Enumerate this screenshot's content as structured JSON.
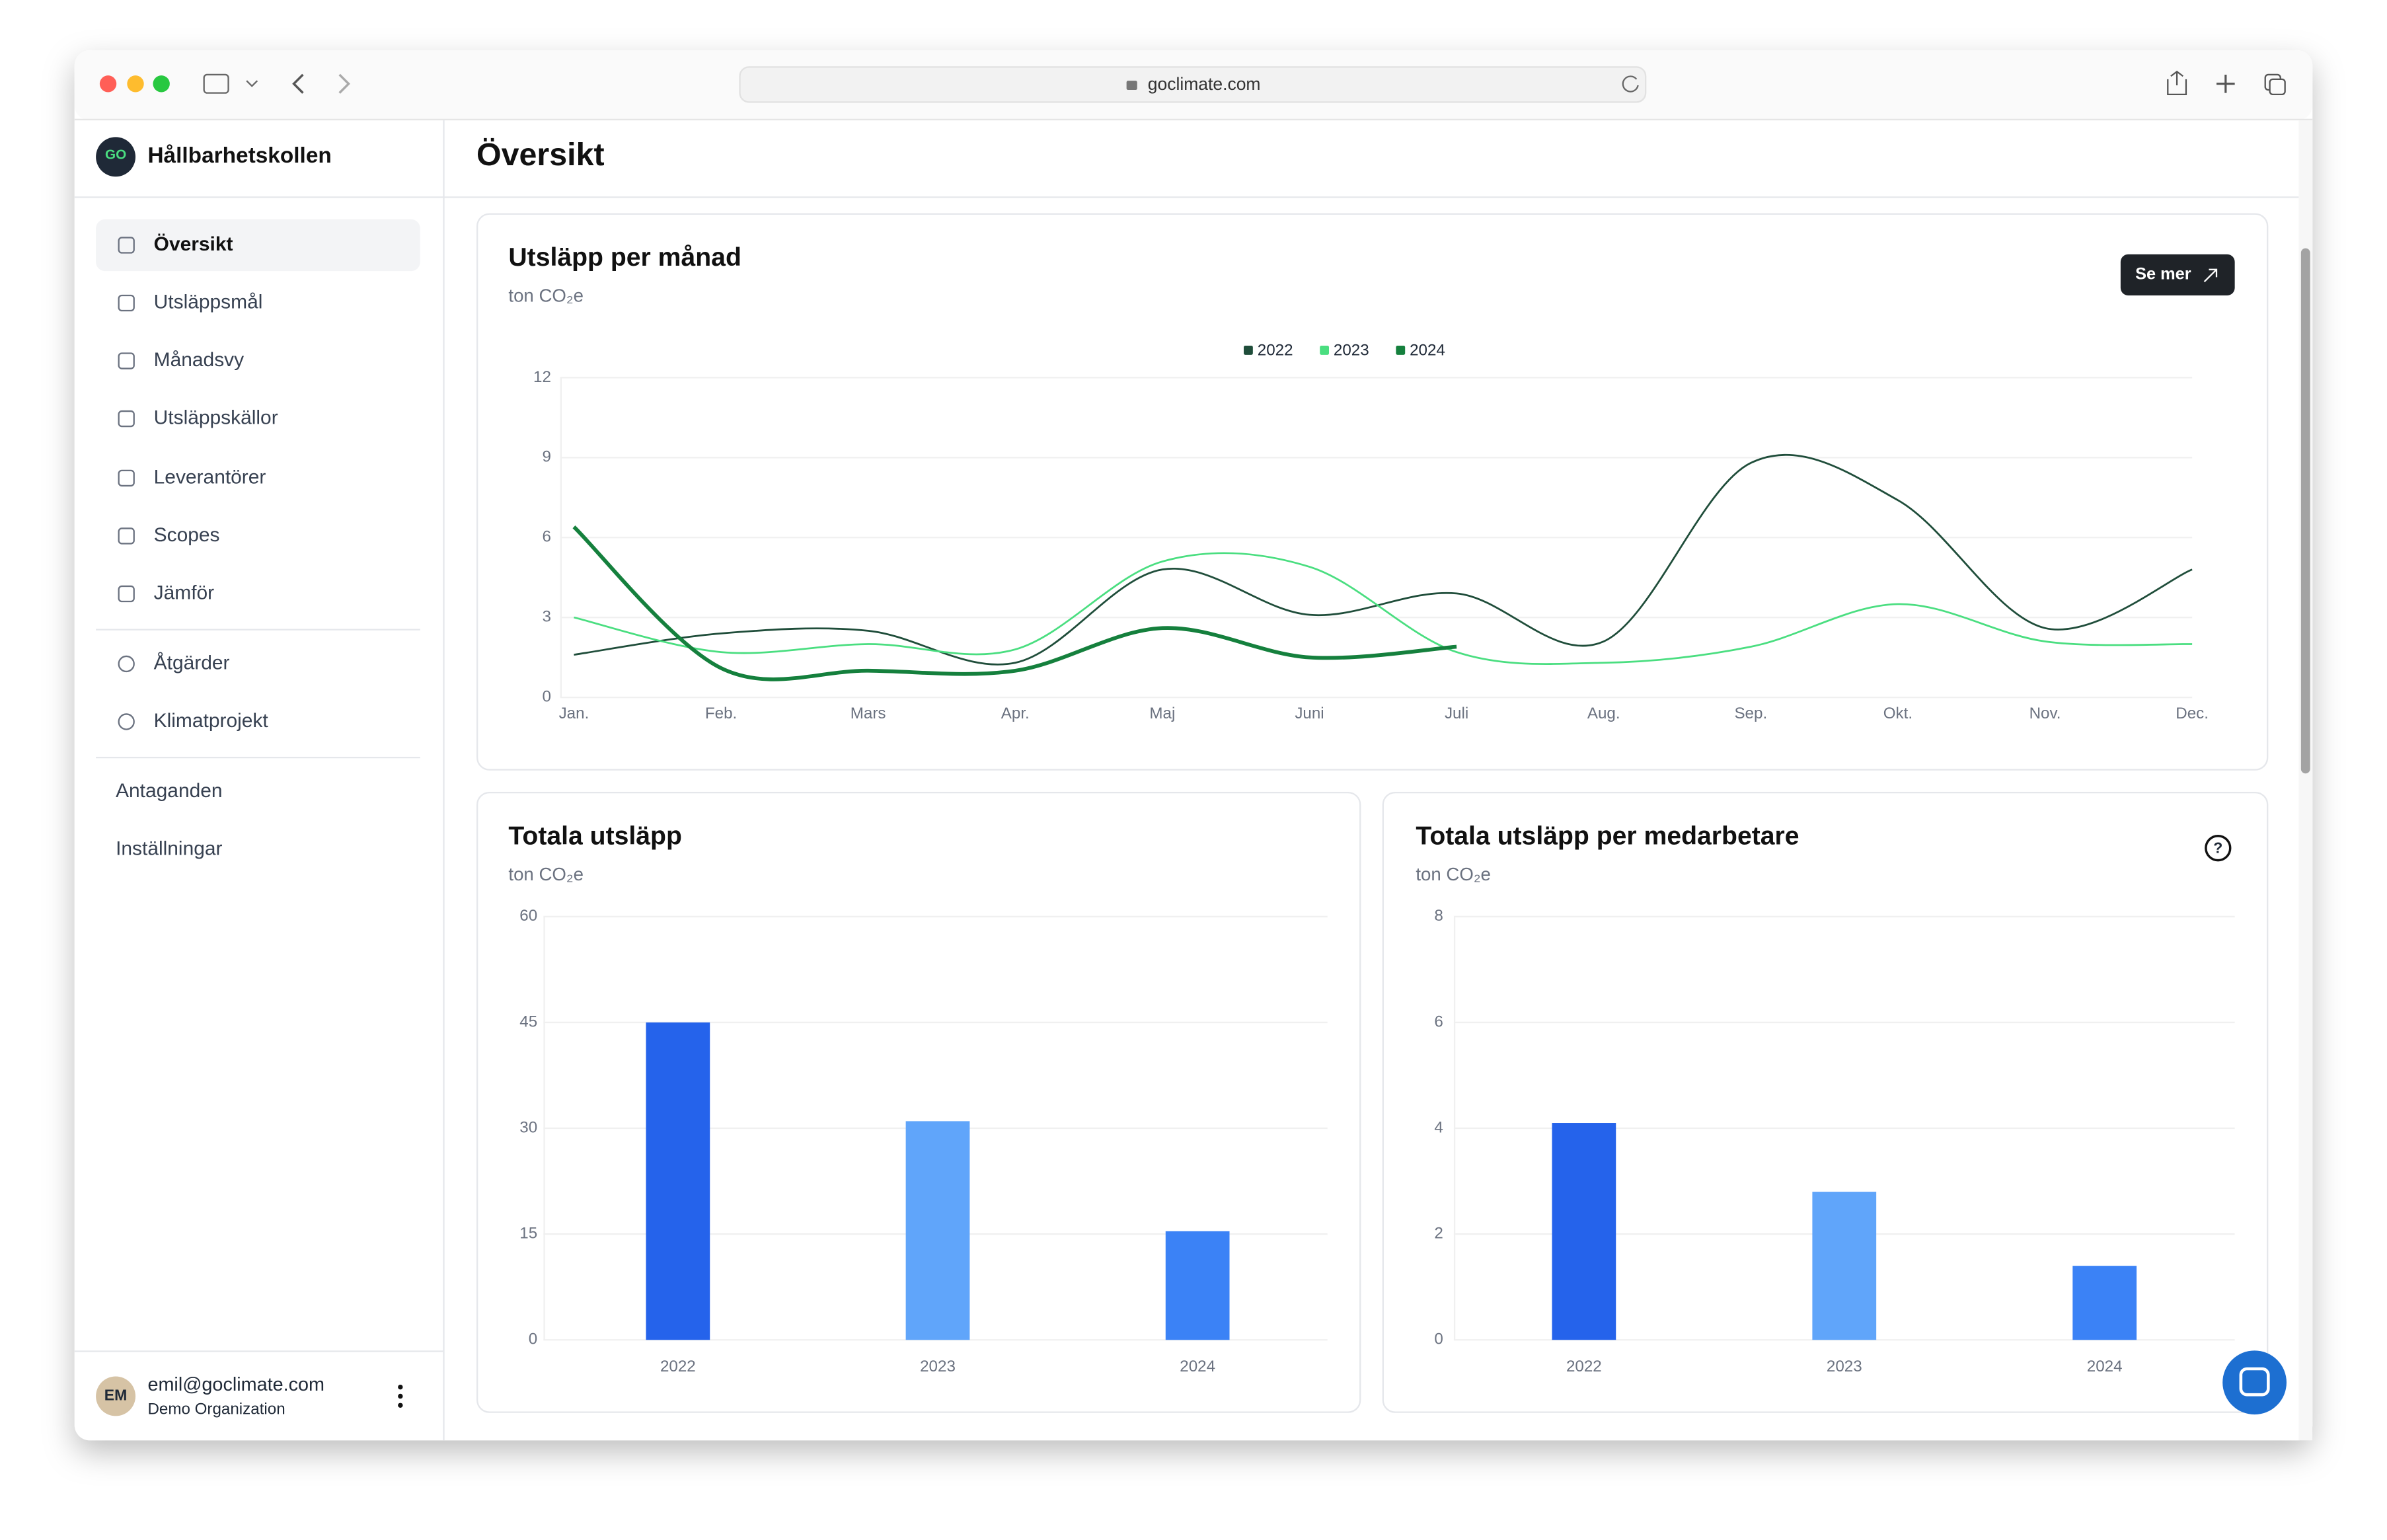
{
  "browser": {
    "url": "goclimate.com"
  },
  "sidebar": {
    "logo": "GO",
    "brand": "Hållbarhetskollen",
    "nav": [
      "Översikt",
      "Utsläppsmål",
      "Månadsvy",
      "Utsläppskällor",
      "Leverantörer",
      "Scopes",
      "Jämför"
    ],
    "actions": [
      "Åtgärder",
      "Klimatprojekt"
    ],
    "settings": [
      "Antaganden",
      "Inställningar"
    ],
    "user": {
      "initials": "EM",
      "email": "emil@goclimate.com",
      "organization": "Demo Organization"
    }
  },
  "page": {
    "title": "Översikt"
  },
  "chart_data": [
    {
      "type": "line",
      "title": "Utsläpp per månad",
      "subtitle": "ton CO₂e",
      "button": "Se mer",
      "categories": [
        "Jan.",
        "Feb.",
        "Mars",
        "Apr.",
        "Maj",
        "Juni",
        "Juli",
        "Aug.",
        "Sep.",
        "Okt.",
        "Nov.",
        "Dec."
      ],
      "series": [
        {
          "name": "2022",
          "color": "#1f4d3a",
          "values": [
            1.6,
            2.4,
            2.5,
            1.3,
            4.8,
            3.1,
            3.9,
            2.1,
            8.8,
            7.4,
            2.6,
            4.8
          ]
        },
        {
          "name": "2023",
          "color": "#4ade80",
          "values": [
            3.0,
            1.7,
            2.0,
            1.8,
            5.1,
            4.9,
            1.7,
            1.3,
            1.9,
            3.5,
            2.1,
            2.0
          ]
        },
        {
          "name": "2024",
          "color": "#15803d",
          "values": [
            6.4,
            1.1,
            1.0,
            1.0,
            2.6,
            1.5,
            1.9,
            null,
            null,
            null,
            null,
            null
          ]
        }
      ],
      "ylim": [
        0,
        12
      ],
      "yticks": [
        0,
        3,
        6,
        9,
        12
      ],
      "grid": true,
      "legend": "top"
    },
    {
      "type": "bar",
      "title": "Totala utsläpp",
      "subtitle": "ton CO₂e",
      "categories": [
        "2022",
        "2023",
        "2024"
      ],
      "values": [
        45,
        31,
        15.4
      ],
      "colors": [
        "#2563eb",
        "#60a5fa",
        "#3b82f6"
      ],
      "ylim": [
        0,
        60
      ],
      "yticks": [
        0,
        15,
        30,
        45,
        60
      ],
      "grid": true
    },
    {
      "type": "bar",
      "title": "Totala utsläpp per medarbetare",
      "subtitle": "ton CO₂e",
      "categories": [
        "2022",
        "2023",
        "2024"
      ],
      "values": [
        4.1,
        2.8,
        1.4
      ],
      "colors": [
        "#2563eb",
        "#60a5fa",
        "#3b82f6"
      ],
      "ylim": [
        0,
        8
      ],
      "yticks": [
        0,
        2,
        4,
        6,
        8
      ],
      "grid": true
    }
  ]
}
